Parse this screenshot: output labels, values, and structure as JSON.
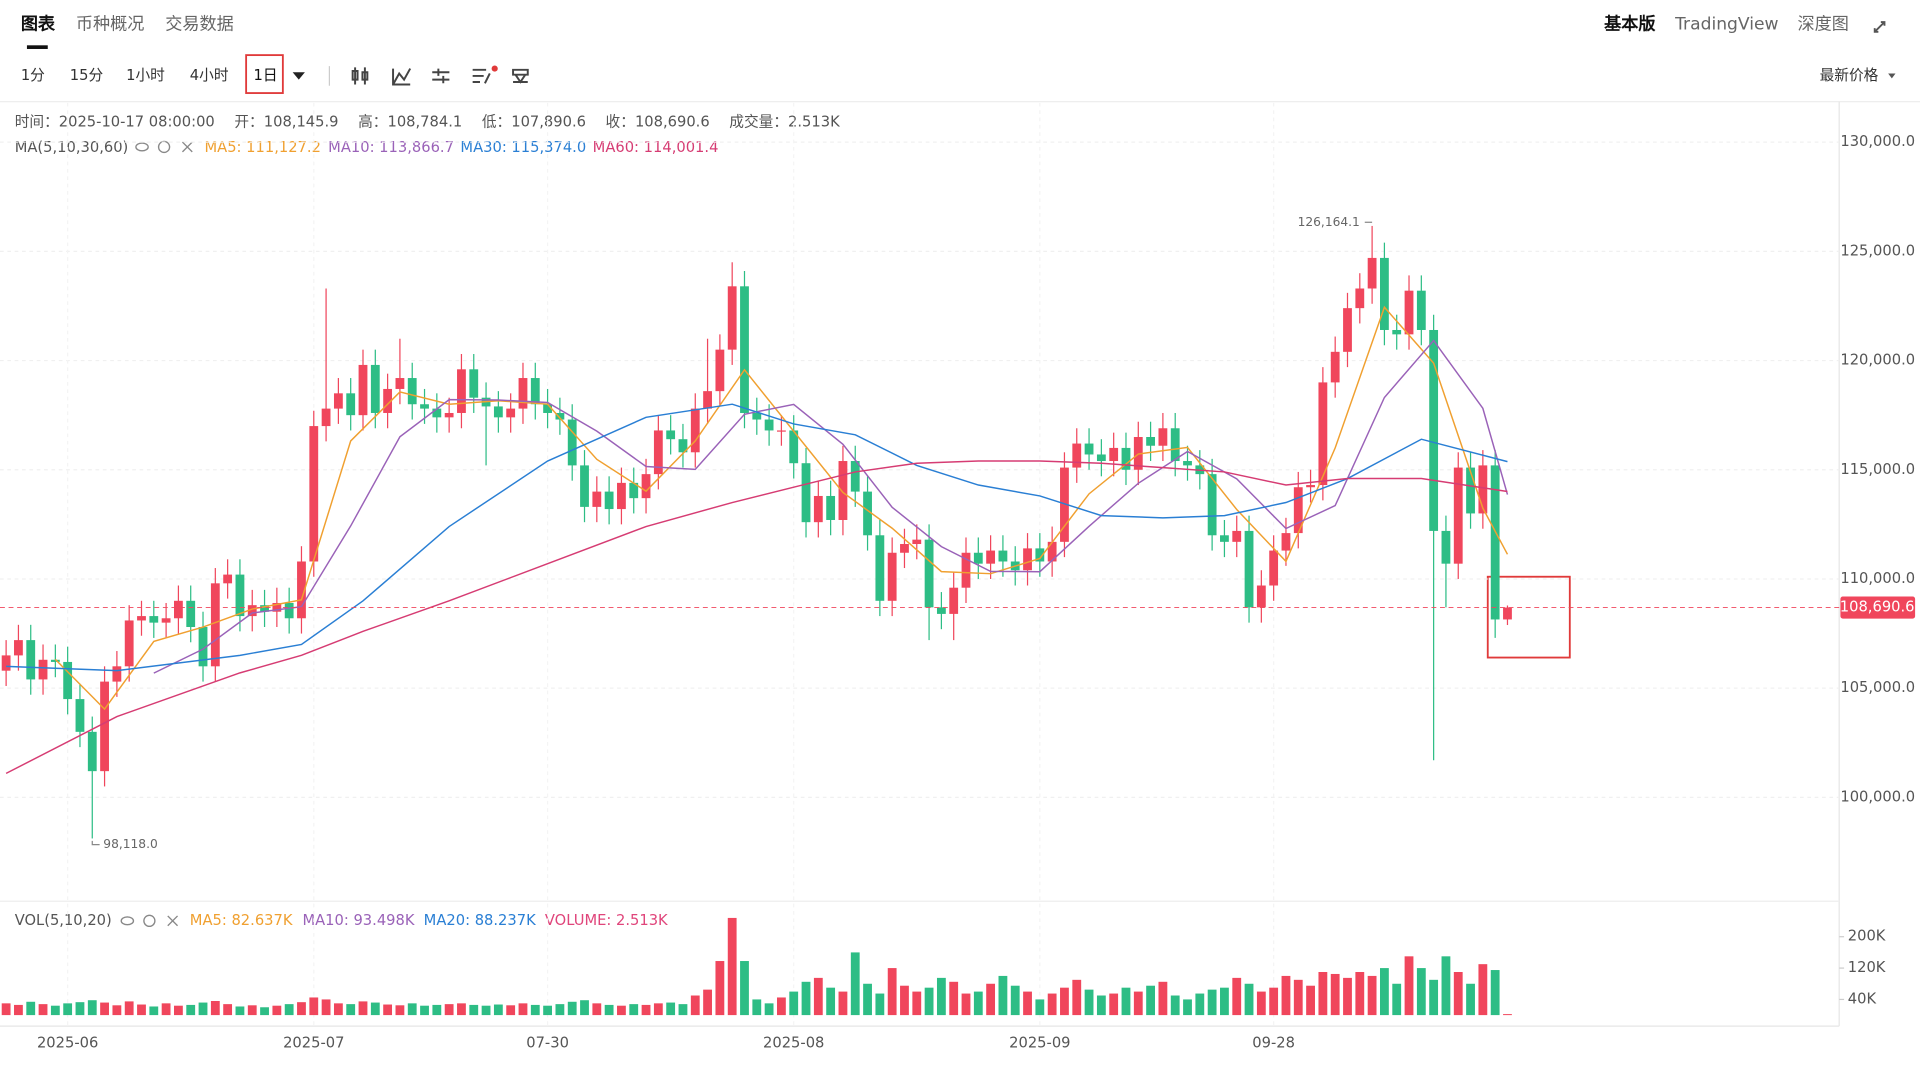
{
  "header": {
    "tabs": [
      "图表",
      "币种概况",
      "交易数据"
    ],
    "right": [
      "基本版",
      "TradingView",
      "深度图"
    ]
  },
  "toolbar": {
    "intervals": [
      "1分",
      "15分",
      "1小时",
      "4小时",
      "1日"
    ],
    "price_type": "最新价格"
  },
  "chart_data": {
    "type": "candlestick",
    "info": [
      {
        "label": "时间：",
        "value": "2025-10-17 08:00:00"
      },
      {
        "label": "开：",
        "value": "108,145.9"
      },
      {
        "label": "高：",
        "value": "108,784.1"
      },
      {
        "label": "低：",
        "value": "107,890.6"
      },
      {
        "label": "收：",
        "value": "108,690.6"
      },
      {
        "label": "成交量：",
        "value": "2.513K"
      }
    ],
    "ma_title": "MA(5,10,30,60)",
    "up_color": "#f0465c",
    "down_color": "#2dbd85",
    "categories": [
      null,
      null,
      null,
      null,
      null,
      "2025-06",
      null,
      null,
      null,
      null,
      null,
      null,
      null,
      null,
      null,
      null,
      null,
      null,
      null,
      null,
      null,
      null,
      null,
      null,
      null,
      "2025-07",
      null,
      null,
      null,
      null,
      null,
      null,
      null,
      null,
      null,
      null,
      null,
      null,
      null,
      null,
      null,
      null,
      null,
      null,
      "07-30",
      null,
      null,
      null,
      null,
      null,
      null,
      null,
      null,
      null,
      null,
      null,
      null,
      null,
      null,
      null,
      null,
      null,
      null,
      null,
      "2025-08",
      null,
      null,
      null,
      null,
      null,
      null,
      null,
      null,
      null,
      null,
      null,
      null,
      null,
      null,
      null,
      null,
      null,
      null,
      null,
      "2025-09",
      null,
      null,
      null,
      null,
      null,
      null,
      null,
      null,
      null,
      null,
      null,
      null,
      null,
      null,
      null,
      null,
      null,
      null,
      "09-28",
      null,
      null,
      null,
      null,
      null,
      null,
      null,
      null,
      null,
      null,
      null,
      null,
      null,
      null,
      null,
      null,
      null,
      null,
      null
    ],
    "open": [
      105800,
      106500,
      107200,
      105400,
      106300,
      106200,
      104500,
      103000,
      101200,
      105300,
      106000,
      108100,
      108300,
      108000,
      108200,
      109000,
      107800,
      106000,
      109800,
      110200,
      108300,
      108800,
      108500,
      108900,
      108200,
      110800,
      117000,
      117800,
      118500,
      117500,
      119800,
      117600,
      118700,
      119200,
      118000,
      117800,
      117400,
      117600,
      119600,
      118300,
      117900,
      117400,
      117800,
      119200,
      118000,
      117600,
      117300,
      115200,
      113300,
      114000,
      113200,
      114400,
      113700,
      114800,
      116800,
      116400,
      115800,
      117800,
      118600,
      120500,
      123400,
      117600,
      117300,
      116800,
      116800,
      115300,
      112600,
      113800,
      112700,
      115400,
      114000,
      112000,
      109000,
      111200,
      111600,
      111800,
      108700,
      108400,
      109600,
      111200,
      110700,
      111300,
      110800,
      110400,
      111400,
      110800,
      111700,
      115100,
      116200,
      115700,
      115400,
      116000,
      115000,
      116500,
      116100,
      116900,
      115400,
      115200,
      114800,
      112000,
      111700,
      112200,
      108700,
      109700,
      111300,
      112100,
      114200,
      114300,
      119000,
      120400,
      122400,
      123300,
      124700,
      121400,
      121200,
      123200,
      121400,
      112200,
      110700,
      115100,
      113000,
      115200,
      108145.9
    ],
    "high": [
      107200,
      107900,
      107900,
      107000,
      107000,
      106900,
      105200,
      103700,
      106000,
      106700,
      108800,
      109000,
      109000,
      108900,
      109700,
      109700,
      108500,
      110500,
      110900,
      110900,
      109500,
      109500,
      109600,
      109600,
      111500,
      117700,
      123300,
      119200,
      119200,
      120500,
      120500,
      119400,
      121000,
      119900,
      118700,
      118500,
      118300,
      120300,
      120300,
      119000,
      118600,
      118500,
      119900,
      119900,
      118700,
      118300,
      118000,
      115900,
      114700,
      114700,
      115100,
      115100,
      115500,
      117500,
      117500,
      117100,
      118500,
      121000,
      121200,
      124500,
      124100,
      118300,
      118000,
      117500,
      117500,
      116000,
      114500,
      114500,
      116100,
      116100,
      114700,
      112700,
      111900,
      112300,
      112500,
      112500,
      109400,
      110300,
      111900,
      111900,
      112000,
      112000,
      111500,
      112100,
      112100,
      112400,
      115800,
      116900,
      116900,
      116400,
      116700,
      116700,
      117200,
      117200,
      117600,
      117600,
      116100,
      115900,
      115500,
      112700,
      112900,
      112900,
      110400,
      112000,
      112800,
      114900,
      115000,
      119700,
      121100,
      123100,
      124000,
      126164.1,
      125400,
      122100,
      123900,
      123900,
      122100,
      112900,
      115800,
      115800,
      115900,
      115900,
      108784.1
    ],
    "low": [
      105100,
      105800,
      104700,
      104700,
      105500,
      103800,
      102300,
      98118,
      100500,
      104600,
      105300,
      107400,
      107300,
      107300,
      107500,
      107100,
      105300,
      105300,
      109100,
      107600,
      107600,
      107800,
      107800,
      107500,
      107500,
      110100,
      116300,
      117100,
      116800,
      116800,
      116900,
      116900,
      118000,
      117300,
      117100,
      116700,
      116700,
      116900,
      117600,
      115200,
      116700,
      116700,
      117100,
      117300,
      116900,
      116600,
      114500,
      112600,
      112600,
      112500,
      112500,
      113000,
      113000,
      114100,
      115700,
      115100,
      115100,
      117100,
      117900,
      119800,
      116900,
      116600,
      116100,
      116100,
      114600,
      111900,
      111900,
      112000,
      112000,
      113300,
      111300,
      108300,
      108300,
      110500,
      110900,
      107200,
      107700,
      107200,
      108900,
      110000,
      110000,
      110100,
      109700,
      109700,
      110100,
      110100,
      111000,
      114400,
      115000,
      114700,
      114700,
      114300,
      114300,
      115400,
      115400,
      114700,
      114500,
      114100,
      111300,
      111000,
      111000,
      108000,
      108000,
      109000,
      110600,
      111400,
      113500,
      113600,
      118300,
      119700,
      121700,
      122600,
      120700,
      120500,
      120500,
      120700,
      101700,
      108700,
      110000,
      112300,
      112300,
      107300,
      107890.6
    ],
    "close": [
      106500,
      107200,
      105400,
      106300,
      106200,
      104500,
      103000,
      101200,
      105300,
      106000,
      108100,
      108300,
      108000,
      108200,
      109000,
      107800,
      106000,
      109800,
      110200,
      108300,
      108800,
      108500,
      108900,
      108200,
      110800,
      117000,
      117800,
      118500,
      117500,
      119800,
      117600,
      118700,
      119200,
      118000,
      117800,
      117400,
      117600,
      119600,
      118300,
      117900,
      117400,
      117800,
      119200,
      118000,
      117600,
      117300,
      115200,
      113300,
      114000,
      113200,
      114400,
      113700,
      114800,
      116800,
      116400,
      115800,
      117800,
      118600,
      120500,
      123400,
      117600,
      117300,
      116800,
      116800,
      115300,
      112600,
      113800,
      112700,
      115400,
      114000,
      112000,
      109000,
      111200,
      111600,
      111800,
      108700,
      108400,
      109600,
      111200,
      110700,
      111300,
      110800,
      110400,
      111400,
      110800,
      111700,
      115100,
      116200,
      115700,
      115400,
      116000,
      115000,
      116500,
      116100,
      116900,
      115400,
      115200,
      114800,
      112000,
      111700,
      112200,
      108700,
      109700,
      111300,
      112100,
      114200,
      114300,
      119000,
      120400,
      122400,
      123300,
      124700,
      121400,
      121200,
      123200,
      121400,
      112200,
      110700,
      115100,
      113000,
      115200,
      108145.9,
      108690.6
    ],
    "ma": [
      {
        "legend": "MA5: 111,127.2",
        "color": "#f0a030",
        "x": [
          4,
          8,
          12,
          16,
          20,
          24,
          28,
          32,
          36,
          40,
          44,
          48,
          52,
          56,
          60,
          64,
          68,
          72,
          76,
          80,
          84,
          88,
          92,
          96,
          100,
          104,
          108,
          112,
          116,
          120,
          122
        ],
        "values": [
          106320,
          104040,
          107140,
          107800,
          108620,
          109040,
          116320,
          118560,
          118000,
          118160,
          118000,
          115480,
          114020,
          116320,
          119580,
          116760,
          113960,
          112320,
          110340,
          110240,
          110940,
          113900,
          115720,
          116020,
          113180,
          110800,
          116000,
          122440,
          119880,
          113240,
          111127.2
        ]
      },
      {
        "legend": "MA10: 113,866.7",
        "color": "#9a62b8",
        "x": [
          12,
          16,
          20,
          24,
          28,
          32,
          36,
          40,
          44,
          48,
          52,
          56,
          60,
          64,
          68,
          72,
          76,
          80,
          84,
          88,
          92,
          96,
          100,
          104,
          108,
          112,
          116,
          120,
          122
        ],
        "values": [
          105690,
          106790,
          108440,
          108730,
          112430,
          116510,
          118210,
          118190,
          118080,
          116770,
          115150,
          115020,
          117540,
          117990,
          116170,
          113280,
          111480,
          110350,
          110330,
          112410,
          114380,
          115840,
          114580,
          112310,
          113360,
          118310,
          120920,
          117810,
          113866.7
        ]
      },
      {
        "legend": "MA30: 115,374.0",
        "color": "#2a7fd4",
        "x": [
          0,
          9,
          19,
          24,
          29,
          36,
          44,
          52,
          59,
          64,
          69,
          74,
          79,
          84,
          89,
          94,
          99,
          104,
          109,
          115,
          122
        ],
        "values": [
          106000,
          105800,
          106500,
          107000,
          109000,
          112400,
          115400,
          117400,
          118000,
          117100,
          116600,
          115200,
          114300,
          113800,
          112900,
          112800,
          112900,
          113500,
          114600,
          116400,
          115374.0
        ]
      },
      {
        "legend": "MA60: 114,001.4",
        "color": "#d63c73",
        "x": [
          0,
          9,
          19,
          24,
          29,
          36,
          44,
          52,
          59,
          64,
          69,
          74,
          79,
          84,
          89,
          94,
          99,
          104,
          109,
          115,
          122
        ],
        "values": [
          101100,
          103700,
          105700,
          106500,
          107600,
          109000,
          110700,
          112400,
          113500,
          114200,
          114900,
          115300,
          115400,
          115400,
          115300,
          115100,
          114900,
          114300,
          114600,
          114600,
          114001.4
        ]
      }
    ],
    "ylim": [
      95300,
      131800
    ],
    "yticks": [
      {
        "value": 100000,
        "label": "100,000.0"
      },
      {
        "value": 105000,
        "label": "105,000.0"
      },
      {
        "value": 110000,
        "label": "110,000.0"
      },
      {
        "value": 115000,
        "label": "115,000.0"
      },
      {
        "value": 120000,
        "label": "120,000.0"
      },
      {
        "value": 125000,
        "label": "125,000.0"
      },
      {
        "value": 130000,
        "label": "130,000.0"
      }
    ],
    "max_label": "126,164.1",
    "min_label": "98,118.0",
    "last_price_label": "108,690.6",
    "volume": {
      "title": "VOL(5,10,20)",
      "legends": [
        {
          "text": "MA5: 82.637K",
          "color": "#f0a030"
        },
        {
          "text": "MA10: 93.498K",
          "color": "#9a62b8"
        },
        {
          "text": "MA20: 88.237K",
          "color": "#2a7fd4"
        },
        {
          "text": "VOLUME: 2.513K",
          "color": "#e0457b"
        }
      ],
      "values": [
        30000,
        26000,
        34000,
        28000,
        24000,
        30000,
        33000,
        38000,
        32000,
        25000,
        35000,
        27000,
        22000,
        30000,
        24000,
        26000,
        32000,
        36000,
        28000,
        22000,
        25000,
        20000,
        24000,
        28000,
        33000,
        45000,
        40000,
        30000,
        28000,
        35000,
        32000,
        27000,
        25000,
        30000,
        24000,
        26000,
        28000,
        30000,
        26000,
        24000,
        27000,
        25000,
        30000,
        26000,
        24000,
        28000,
        34000,
        38000,
        30000,
        26000,
        24000,
        28000,
        26000,
        30000,
        32000,
        28000,
        50000,
        65000,
        138000,
        248000,
        138000,
        40000,
        30000,
        45000,
        60000,
        85000,
        95000,
        70000,
        60000,
        160000,
        80000,
        55000,
        120000,
        75000,
        60000,
        70000,
        95000,
        85000,
        55000,
        60000,
        80000,
        100000,
        75000,
        60000,
        40000,
        55000,
        70000,
        90000,
        65000,
        50000,
        55000,
        70000,
        60000,
        75000,
        85000,
        50000,
        40000,
        55000,
        65000,
        70000,
        95000,
        80000,
        60000,
        70000,
        100000,
        90000,
        75000,
        110000,
        105000,
        95000,
        110000,
        100000,
        120000,
        80000,
        150000,
        120000,
        90000,
        150000,
        110000,
        80000,
        130000,
        115000,
        2513
      ],
      "ylim": [
        0,
        280000
      ],
      "yticks": [
        {
          "value": 40000,
          "label": "40K"
        },
        {
          "value": 120000,
          "label": "120K"
        },
        {
          "value": 200000,
          "label": "200K"
        }
      ]
    }
  }
}
